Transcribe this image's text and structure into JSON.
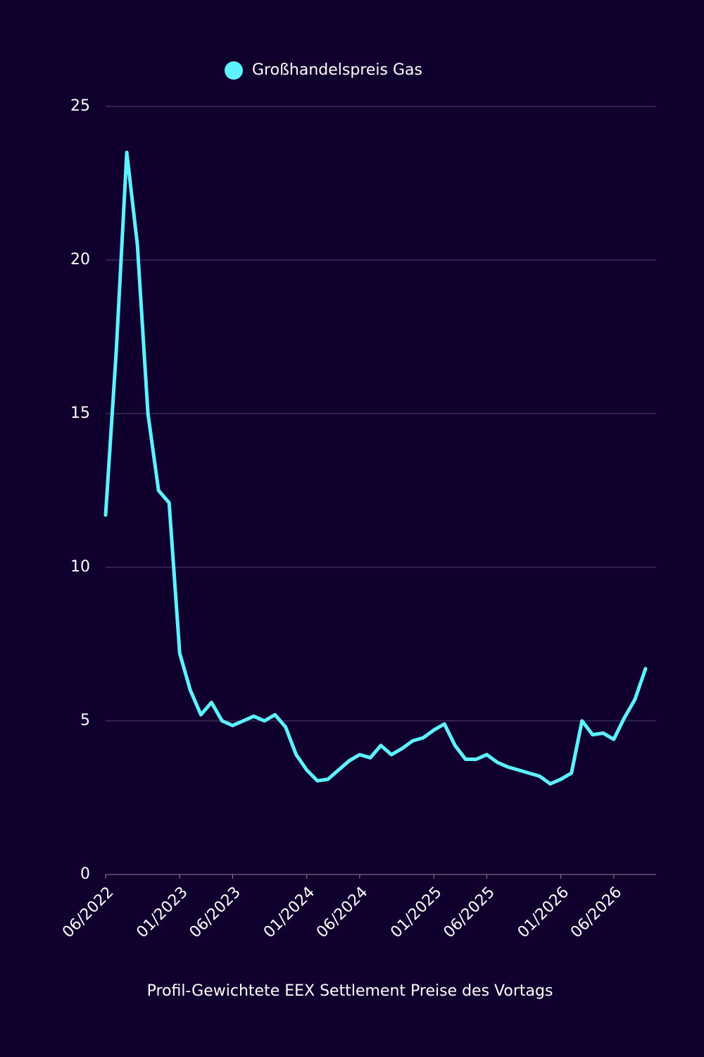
{
  "chart_data": {
    "type": "line",
    "x": [
      "06/2022",
      "07/2022",
      "08/2022",
      "09/2022",
      "10/2022",
      "11/2022",
      "12/2022",
      "01/2023",
      "02/2023",
      "03/2023",
      "04/2023",
      "05/2023",
      "06/2023",
      "07/2023",
      "08/2023",
      "09/2023",
      "10/2023",
      "11/2023",
      "12/2023",
      "01/2024",
      "02/2024",
      "03/2024",
      "04/2024",
      "05/2024",
      "06/2024",
      "07/2024",
      "08/2024",
      "09/2024",
      "10/2024",
      "11/2024",
      "12/2024",
      "01/2025",
      "02/2025",
      "03/2025",
      "04/2025",
      "05/2025",
      "06/2025",
      "07/2025",
      "08/2025",
      "09/2025",
      "10/2025",
      "11/2025",
      "12/2025",
      "01/2026",
      "02/2026",
      "03/2026",
      "04/2026",
      "05/2026",
      "06/2026",
      "07/2026",
      "08/2026",
      "09/2026"
    ],
    "series": [
      {
        "name": "Großhandelspreis Gas",
        "color": "#5ef2ff",
        "values": [
          11.7,
          17,
          23.5,
          20.5,
          15,
          12.5,
          12.1,
          7.2,
          6.0,
          5.2,
          5.6,
          5.0,
          4.85,
          5.0,
          5.15,
          5.0,
          5.2,
          4.8,
          3.9,
          3.4,
          3.05,
          3.1,
          3.4,
          3.7,
          3.9,
          3.8,
          4.2,
          3.9,
          4.1,
          4.35,
          4.45,
          4.7,
          4.9,
          4.2,
          3.75,
          3.75,
          3.9,
          3.65,
          3.5,
          3.4,
          3.3,
          3.2,
          2.95,
          3.1,
          3.3,
          5.0,
          4.55,
          4.6,
          4.4,
          5.1,
          5.7,
          6.7
        ]
      }
    ],
    "xlim": [
      "06/2022",
      "10/2026"
    ],
    "xticks": [
      "06/2022",
      "01/2023",
      "06/2023",
      "01/2024",
      "06/2024",
      "01/2025",
      "06/2025",
      "01/2026",
      "06/2026"
    ],
    "ylim": [
      0,
      25
    ],
    "yticks": [
      0,
      5,
      10,
      15,
      20,
      25
    ],
    "grid": true,
    "xlabel": "Profil-Gewichtete EEX Settlement Preise des Vortags",
    "legend": "top"
  }
}
